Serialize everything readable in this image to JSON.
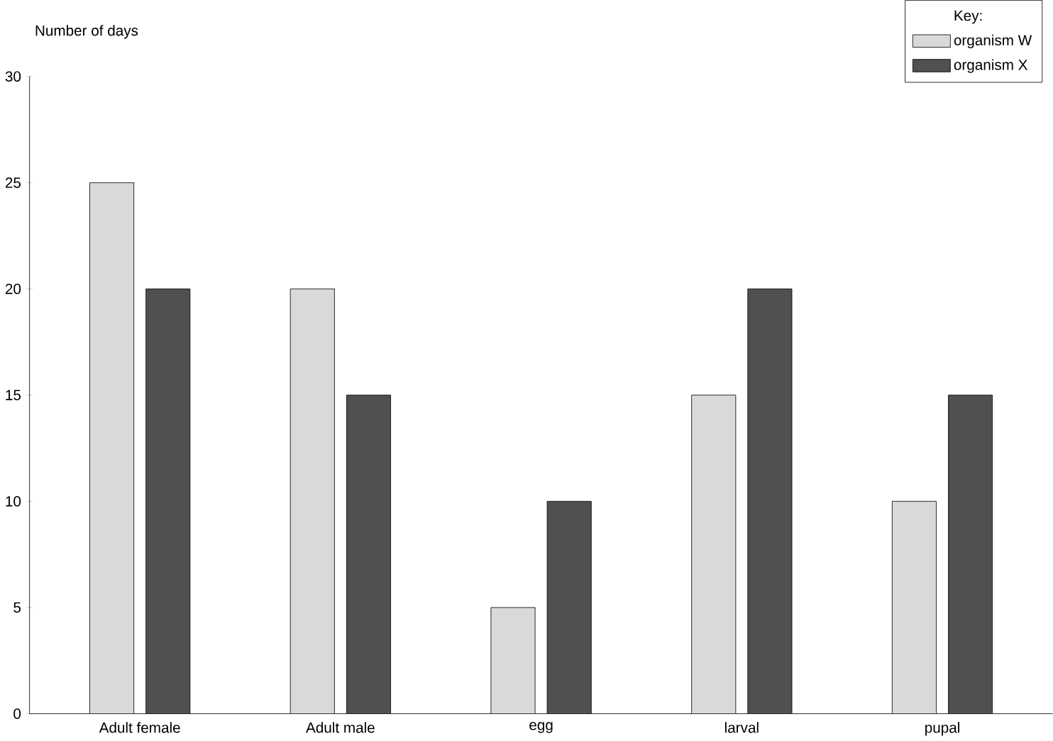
{
  "chart_data": {
    "type": "bar",
    "ylabel": "Number of days",
    "legend_title": "Key:",
    "categories": [
      "Adult female",
      "Adult male",
      "egg",
      "larval",
      "pupal"
    ],
    "series": [
      {
        "name": "organism W",
        "color": "#d9d9d9",
        "values": [
          25,
          20,
          5,
          15,
          10
        ]
      },
      {
        "name": "organism X",
        "color": "#505050",
        "values": [
          20,
          15,
          10,
          20,
          15
        ]
      }
    ],
    "ylim": [
      0,
      30
    ],
    "yticks": [
      0,
      5,
      10,
      15,
      20,
      25,
      30
    ],
    "grid": false,
    "legend": "top right"
  }
}
